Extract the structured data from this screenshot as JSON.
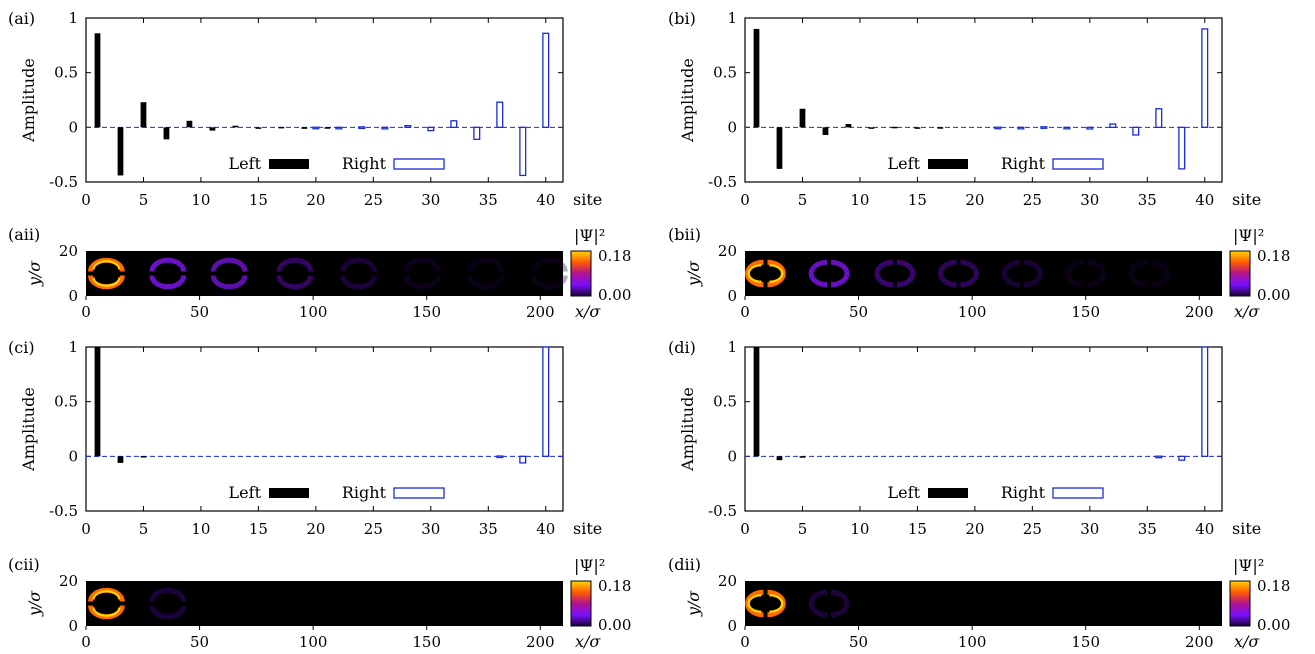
{
  "colors": {
    "left_bar": "#000000",
    "right_bar_edge": "#1a2bd9",
    "zero_line": "#1a2bd9",
    "heatmap_background": "#000000",
    "colormap": [
      "#000000",
      "#5a00a8",
      "#8a1cff",
      "#c2187a",
      "#ff6a00",
      "#ffd400",
      "#fff3a0"
    ]
  },
  "shared": {
    "amplitude_ylabel": "Amplitude",
    "site_xlabel": "site",
    "map_xlabel": "x/σ",
    "map_ylabel": "y/σ",
    "colorbar_label": "|Ψ|²",
    "colorbar_max": "0.18",
    "colorbar_min": "0.00",
    "legend_left": "Left",
    "legend_right": "Right"
  },
  "chart_data": [
    {
      "panel": "(ai)",
      "type": "bar",
      "ylabel": "Amplitude",
      "xlabel": "site",
      "xlim": [
        0,
        41.5
      ],
      "ylim": [
        -0.5,
        1
      ],
      "xticks": [
        0,
        5,
        10,
        15,
        20,
        25,
        30,
        35,
        40
      ],
      "yticks": [
        -0.5,
        0,
        0.5,
        1
      ],
      "ytick_labels": [
        "-0.5",
        "0",
        "0.5",
        "1"
      ],
      "legend": "bottom-center",
      "series": [
        {
          "name": "Left",
          "style": "filled",
          "x": [
            1,
            3,
            5,
            7,
            9,
            11,
            13,
            15,
            17,
            19,
            21,
            23,
            25,
            27,
            29,
            31,
            33,
            35,
            37,
            39
          ],
          "values": [
            0.86,
            -0.44,
            0.23,
            -0.11,
            0.06,
            -0.03,
            0.015,
            -0.008,
            0.004,
            -0.002,
            0.001,
            0,
            0,
            0,
            0,
            0,
            0,
            0,
            0,
            0
          ]
        },
        {
          "name": "Right",
          "style": "hollow",
          "x": [
            2,
            4,
            6,
            8,
            10,
            12,
            14,
            16,
            18,
            20,
            22,
            24,
            26,
            28,
            30,
            32,
            34,
            36,
            38,
            40
          ],
          "values": [
            0,
            0,
            0,
            0,
            0,
            0,
            0,
            0,
            0,
            0.001,
            -0.002,
            0.004,
            -0.008,
            0.015,
            -0.03,
            0.06,
            -0.11,
            0.23,
            -0.44,
            0.86
          ]
        }
      ]
    },
    {
      "panel": "(bi)",
      "type": "bar",
      "ylabel": "Amplitude",
      "xlabel": "site",
      "xlim": [
        0,
        41.5
      ],
      "ylim": [
        -0.5,
        1
      ],
      "xticks": [
        0,
        5,
        10,
        15,
        20,
        25,
        30,
        35,
        40
      ],
      "yticks": [
        -0.5,
        0,
        0.5,
        1
      ],
      "ytick_labels": [
        "-0.5",
        "0",
        "0.5",
        "1"
      ],
      "legend": "bottom-center",
      "series": [
        {
          "name": "Left",
          "style": "filled",
          "x": [
            1,
            3,
            5,
            7,
            9,
            11,
            13,
            15,
            17,
            19,
            21,
            23,
            25,
            27,
            29,
            31,
            33,
            35,
            37,
            39
          ],
          "values": [
            0.9,
            -0.38,
            0.17,
            -0.07,
            0.03,
            -0.012,
            0.005,
            -0.002,
            0.001,
            0,
            0,
            0,
            0,
            0,
            0,
            0,
            0,
            0,
            0,
            0
          ]
        },
        {
          "name": "Right",
          "style": "hollow",
          "x": [
            2,
            4,
            6,
            8,
            10,
            12,
            14,
            16,
            18,
            20,
            22,
            24,
            26,
            28,
            30,
            32,
            34,
            36,
            38,
            40
          ],
          "values": [
            0,
            0,
            0,
            0,
            0,
            0,
            0,
            0,
            0,
            0,
            0.001,
            -0.002,
            0.005,
            -0.012,
            -0.015,
            0.03,
            -0.07,
            0.17,
            -0.38,
            0.9
          ]
        }
      ]
    },
    {
      "panel": "(aii)",
      "type": "heatmap",
      "xlabel": "x/σ",
      "ylabel": "y/σ",
      "xlim": [
        0,
        210
      ],
      "ylim": [
        0,
        20
      ],
      "xticks": [
        0,
        50,
        100,
        150,
        200
      ],
      "yticks": [
        0,
        20
      ],
      "colorbar": {
        "label": "|Ψ|²",
        "min": 0.0,
        "max": 0.18
      },
      "rings": [
        {
          "x": 9,
          "intensity": 1.0
        },
        {
          "x": 36,
          "intensity": 0.62
        },
        {
          "x": 63,
          "intensity": 0.52
        },
        {
          "x": 92,
          "intensity": 0.38
        },
        {
          "x": 120,
          "intensity": 0.26
        },
        {
          "x": 148,
          "intensity": 0.18
        },
        {
          "x": 176,
          "intensity": 0.12
        },
        {
          "x": 204,
          "intensity": 0.08
        }
      ],
      "orientation": "horizontal-lobes"
    },
    {
      "panel": "(bii)",
      "type": "heatmap",
      "xlabel": "x/σ",
      "ylabel": "y/σ",
      "xlim": [
        0,
        210
      ],
      "ylim": [
        0,
        20
      ],
      "xticks": [
        0,
        50,
        100,
        150,
        200
      ],
      "yticks": [
        0,
        20
      ],
      "colorbar": {
        "label": "|Ψ|²",
        "min": 0.0,
        "max": 0.18
      },
      "rings": [
        {
          "x": 9,
          "intensity": 1.0
        },
        {
          "x": 37,
          "intensity": 0.6
        },
        {
          "x": 66,
          "intensity": 0.45
        },
        {
          "x": 94,
          "intensity": 0.33
        },
        {
          "x": 122,
          "intensity": 0.22
        },
        {
          "x": 150,
          "intensity": 0.14
        },
        {
          "x": 178,
          "intensity": 0.09
        }
      ],
      "orientation": "vertical-lobes"
    },
    {
      "panel": "(ci)",
      "type": "bar",
      "ylabel": "Amplitude",
      "xlabel": "site",
      "xlim": [
        0,
        41.5
      ],
      "ylim": [
        -0.5,
        1
      ],
      "xticks": [
        0,
        5,
        10,
        15,
        20,
        25,
        30,
        35,
        40
      ],
      "yticks": [
        -0.5,
        0,
        0.5,
        1
      ],
      "ytick_labels": [
        "-0.5",
        "0",
        "0.5",
        "1"
      ],
      "legend": "bottom-center",
      "series": [
        {
          "name": "Left",
          "style": "filled",
          "x": [
            1,
            3,
            5,
            7
          ],
          "values": [
            1.0,
            -0.06,
            0.003,
            0
          ]
        },
        {
          "name": "Right",
          "style": "hollow",
          "x": [
            34,
            36,
            38,
            40
          ],
          "values": [
            0,
            0.003,
            -0.06,
            1.0
          ]
        }
      ]
    },
    {
      "panel": "(di)",
      "type": "bar",
      "ylabel": "Amplitude",
      "xlabel": "site",
      "xlim": [
        0,
        41.5
      ],
      "ylim": [
        -0.5,
        1
      ],
      "xticks": [
        0,
        5,
        10,
        15,
        20,
        25,
        30,
        35,
        40
      ],
      "yticks": [
        -0.5,
        0,
        0.5,
        1
      ],
      "ytick_labels": [
        "-0.5",
        "0",
        "0.5",
        "1"
      ],
      "legend": "bottom-center",
      "series": [
        {
          "name": "Left",
          "style": "filled",
          "x": [
            1,
            3,
            5
          ],
          "values": [
            1.0,
            -0.035,
            0.001
          ]
        },
        {
          "name": "Right",
          "style": "hollow",
          "x": [
            36,
            38,
            40
          ],
          "values": [
            0.001,
            -0.035,
            1.0
          ]
        }
      ]
    },
    {
      "panel": "(cii)",
      "type": "heatmap",
      "xlabel": "x/σ",
      "ylabel": "y/σ",
      "xlim": [
        0,
        210
      ],
      "ylim": [
        0,
        20
      ],
      "xticks": [
        0,
        50,
        100,
        150,
        200
      ],
      "yticks": [
        0,
        20
      ],
      "colorbar": {
        "label": "|Ψ|²",
        "min": 0.0,
        "max": 0.18
      },
      "rings": [
        {
          "x": 9,
          "intensity": 1.0
        },
        {
          "x": 36,
          "intensity": 0.3
        }
      ],
      "orientation": "horizontal-lobes"
    },
    {
      "panel": "(dii)",
      "type": "heatmap",
      "xlabel": "x/σ",
      "ylabel": "y/σ",
      "xlim": [
        0,
        210
      ],
      "ylim": [
        0,
        20
      ],
      "xticks": [
        0,
        50,
        100,
        150,
        200
      ],
      "yticks": [
        0,
        20
      ],
      "colorbar": {
        "label": "|Ψ|²",
        "min": 0.0,
        "max": 0.18
      },
      "rings": [
        {
          "x": 9,
          "intensity": 1.0
        },
        {
          "x": 37,
          "intensity": 0.28
        }
      ],
      "orientation": "vertical-lobes"
    }
  ]
}
